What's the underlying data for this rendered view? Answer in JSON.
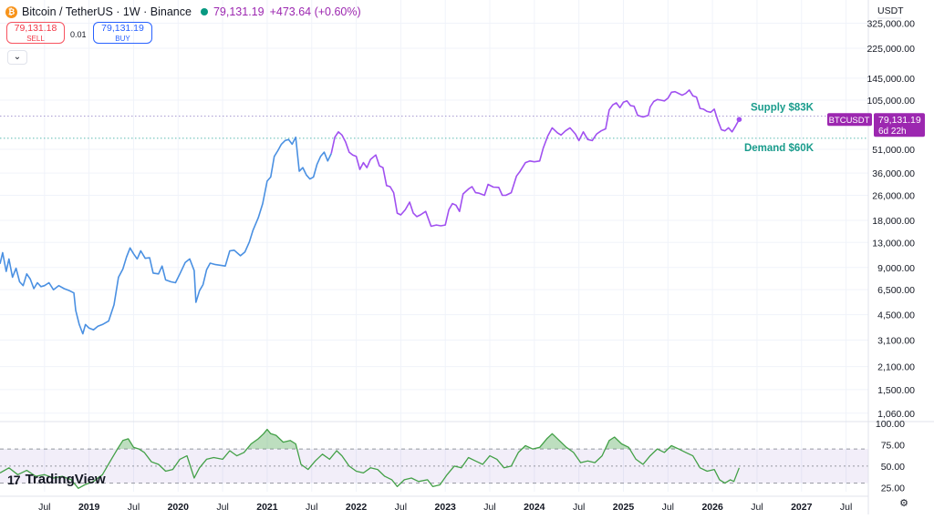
{
  "header": {
    "symbol": "Bitcoin / TetherUS · 1W · Binance",
    "coin_icon_glyph": "₿",
    "last_price": "79,131.19",
    "change": "+473.64 (+0.60%)"
  },
  "trade": {
    "sell_price": "79,131.18",
    "sell_label": "SELL",
    "spread": "0.01",
    "buy_price": "79,131.19",
    "buy_label": "BUY"
  },
  "collapse_glyph": "⌄",
  "logo": {
    "mark": "17",
    "text": "TradingView"
  },
  "gear_glyph": "⚙",
  "colors": {
    "line_blue": "#4a90e2",
    "line_purple": "#a050f0",
    "rsi": "#43a047",
    "label_green": "#1a9c8c",
    "badge": "#9c27b0"
  },
  "chart_data": {
    "type": "line",
    "price_scale": {
      "currency": "USDT",
      "log": true,
      "ticks": [
        "325,000.00",
        "225,000.00",
        "145,000.00",
        "105,000.00",
        "51,000.00",
        "36,000.00",
        "26,000.00",
        "18,000.00",
        "13,000.00",
        "9,000.00",
        "6,500.00",
        "4,500.00",
        "3,100.00",
        "2,100.00",
        "1,500.00",
        "1,060.00"
      ],
      "range": [
        950,
        400000
      ]
    },
    "x_ticks": [
      {
        "label": "Jul",
        "t": 2018.5,
        "bold": false
      },
      {
        "label": "2019",
        "t": 2019.0,
        "bold": true
      },
      {
        "label": "Jul",
        "t": 2019.5,
        "bold": false
      },
      {
        "label": "2020",
        "t": 2020.0,
        "bold": true
      },
      {
        "label": "Jul",
        "t": 2020.5,
        "bold": false
      },
      {
        "label": "2021",
        "t": 2021.0,
        "bold": true
      },
      {
        "label": "Jul",
        "t": 2021.5,
        "bold": false
      },
      {
        "label": "2022",
        "t": 2022.0,
        "bold": true
      },
      {
        "label": "Jul",
        "t": 2022.5,
        "bold": false
      },
      {
        "label": "2023",
        "t": 2023.0,
        "bold": true
      },
      {
        "label": "Jul",
        "t": 2023.5,
        "bold": false
      },
      {
        "label": "2024",
        "t": 2024.0,
        "bold": true
      },
      {
        "label": "Jul",
        "t": 2024.5,
        "bold": false
      },
      {
        "label": "2025",
        "t": 2025.0,
        "bold": true
      },
      {
        "label": "Jul",
        "t": 2025.5,
        "bold": false
      },
      {
        "label": "2026",
        "t": 2026.0,
        "bold": true
      },
      {
        "label": "Jul",
        "t": 2026.5,
        "bold": false
      },
      {
        "label": "2027",
        "t": 2027.0,
        "bold": true
      },
      {
        "label": "Jul",
        "t": 2027.5,
        "bold": false
      }
    ],
    "price_series": [
      [
        2018.0,
        9500
      ],
      [
        2018.03,
        11200
      ],
      [
        2018.07,
        8500
      ],
      [
        2018.1,
        10200
      ],
      [
        2018.14,
        7800
      ],
      [
        2018.18,
        8900
      ],
      [
        2018.22,
        7300
      ],
      [
        2018.26,
        6900
      ],
      [
        2018.3,
        8200
      ],
      [
        2018.34,
        7600
      ],
      [
        2018.38,
        6600
      ],
      [
        2018.42,
        7200
      ],
      [
        2018.46,
        6800
      ],
      [
        2018.5,
        6900
      ],
      [
        2018.55,
        7200
      ],
      [
        2018.6,
        6500
      ],
      [
        2018.66,
        6900
      ],
      [
        2018.72,
        6600
      ],
      [
        2018.78,
        6400
      ],
      [
        2018.83,
        6200
      ],
      [
        2018.85,
        4800
      ],
      [
        2018.89,
        3900
      ],
      [
        2018.93,
        3400
      ],
      [
        2018.96,
        3900
      ],
      [
        2019.0,
        3700
      ],
      [
        2019.05,
        3600
      ],
      [
        2019.1,
        3800
      ],
      [
        2019.15,
        3900
      ],
      [
        2019.22,
        4100
      ],
      [
        2019.28,
        5200
      ],
      [
        2019.33,
        7800
      ],
      [
        2019.38,
        8800
      ],
      [
        2019.42,
        10500
      ],
      [
        2019.46,
        12000
      ],
      [
        2019.5,
        11000
      ],
      [
        2019.54,
        10200
      ],
      [
        2019.58,
        11500
      ],
      [
        2019.63,
        10300
      ],
      [
        2019.68,
        10400
      ],
      [
        2019.72,
        8300
      ],
      [
        2019.78,
        8200
      ],
      [
        2019.82,
        9200
      ],
      [
        2019.86,
        7500
      ],
      [
        2019.92,
        7300
      ],
      [
        2019.97,
        7200
      ],
      [
        2020.02,
        8200
      ],
      [
        2020.08,
        9700
      ],
      [
        2020.13,
        10200
      ],
      [
        2020.18,
        8600
      ],
      [
        2020.2,
        5400
      ],
      [
        2020.24,
        6400
      ],
      [
        2020.28,
        7000
      ],
      [
        2020.32,
        8700
      ],
      [
        2020.36,
        9600
      ],
      [
        2020.42,
        9400
      ],
      [
        2020.48,
        9300
      ],
      [
        2020.53,
        9200
      ],
      [
        2020.58,
        11500
      ],
      [
        2020.63,
        11600
      ],
      [
        2020.7,
        10700
      ],
      [
        2020.75,
        11300
      ],
      [
        2020.8,
        13100
      ],
      [
        2020.84,
        15500
      ],
      [
        2020.9,
        18700
      ],
      [
        2020.95,
        23000
      ],
      [
        2021.0,
        32000
      ],
      [
        2021.04,
        34000
      ],
      [
        2021.08,
        46000
      ],
      [
        2021.12,
        50000
      ],
      [
        2021.16,
        55000
      ],
      [
        2021.2,
        58000
      ],
      [
        2021.24,
        59000
      ],
      [
        2021.28,
        55000
      ],
      [
        2021.32,
        61000
      ],
      [
        2021.36,
        37000
      ],
      [
        2021.4,
        39000
      ],
      [
        2021.44,
        35000
      ],
      [
        2021.48,
        33000
      ],
      [
        2021.52,
        34000
      ],
      [
        2021.56,
        41000
      ],
      [
        2021.6,
        46000
      ],
      [
        2021.64,
        49000
      ],
      [
        2021.68,
        43000
      ],
      [
        2021.72,
        48000
      ],
      [
        2021.76,
        61000
      ],
      [
        2021.8,
        66000
      ],
      [
        2021.84,
        63000
      ],
      [
        2021.88,
        57000
      ],
      [
        2021.92,
        49000
      ],
      [
        2021.96,
        47000
      ],
      [
        2022.0,
        46000
      ],
      [
        2022.04,
        38000
      ],
      [
        2022.08,
        42000
      ],
      [
        2022.12,
        39000
      ],
      [
        2022.16,
        44000
      ],
      [
        2022.22,
        47000
      ],
      [
        2022.26,
        40000
      ],
      [
        2022.3,
        39000
      ],
      [
        2022.34,
        30000
      ],
      [
        2022.38,
        29500
      ],
      [
        2022.42,
        27000
      ],
      [
        2022.46,
        20000
      ],
      [
        2022.5,
        19500
      ],
      [
        2022.55,
        21000
      ],
      [
        2022.6,
        23500
      ],
      [
        2022.64,
        20000
      ],
      [
        2022.68,
        19000
      ],
      [
        2022.72,
        19500
      ],
      [
        2022.78,
        20500
      ],
      [
        2022.84,
        16500
      ],
      [
        2022.9,
        16800
      ],
      [
        2022.95,
        16600
      ],
      [
        2023.0,
        16800
      ],
      [
        2023.04,
        21000
      ],
      [
        2023.08,
        23000
      ],
      [
        2023.12,
        22500
      ],
      [
        2023.16,
        20500
      ],
      [
        2023.2,
        26500
      ],
      [
        2023.26,
        28500
      ],
      [
        2023.3,
        29500
      ],
      [
        2023.34,
        27000
      ],
      [
        2023.38,
        26800
      ],
      [
        2023.44,
        26000
      ],
      [
        2023.48,
        30500
      ],
      [
        2023.54,
        29300
      ],
      [
        2023.6,
        29200
      ],
      [
        2023.64,
        26000
      ],
      [
        2023.68,
        26000
      ],
      [
        2023.74,
        27000
      ],
      [
        2023.8,
        34500
      ],
      [
        2023.84,
        37000
      ],
      [
        2023.9,
        42000
      ],
      [
        2023.95,
        43000
      ],
      [
        2024.0,
        42500
      ],
      [
        2024.06,
        43000
      ],
      [
        2024.1,
        52000
      ],
      [
        2024.15,
        62000
      ],
      [
        2024.2,
        70000
      ],
      [
        2024.26,
        65000
      ],
      [
        2024.3,
        63000
      ],
      [
        2024.35,
        67000
      ],
      [
        2024.4,
        70000
      ],
      [
        2024.46,
        64000
      ],
      [
        2024.5,
        58000
      ],
      [
        2024.55,
        66000
      ],
      [
        2024.6,
        59000
      ],
      [
        2024.65,
        58000
      ],
      [
        2024.7,
        64000
      ],
      [
        2024.75,
        67000
      ],
      [
        2024.8,
        69000
      ],
      [
        2024.84,
        91000
      ],
      [
        2024.88,
        98000
      ],
      [
        2024.92,
        101000
      ],
      [
        2024.96,
        94000
      ],
      [
        2025.0,
        102000
      ],
      [
        2025.04,
        104000
      ],
      [
        2025.08,
        97000
      ],
      [
        2025.12,
        96000
      ],
      [
        2025.16,
        84000
      ],
      [
        2025.22,
        82000
      ],
      [
        2025.28,
        84000
      ],
      [
        2025.3,
        95000
      ],
      [
        2025.34,
        103000
      ],
      [
        2025.38,
        106000
      ],
      [
        2025.42,
        105000
      ],
      [
        2025.46,
        104000
      ],
      [
        2025.5,
        108000
      ],
      [
        2025.54,
        118000
      ],
      [
        2025.58,
        119000
      ],
      [
        2025.62,
        116000
      ],
      [
        2025.66,
        113000
      ],
      [
        2025.7,
        116000
      ],
      [
        2025.74,
        122000
      ],
      [
        2025.78,
        112000
      ],
      [
        2025.82,
        110000
      ],
      [
        2025.86,
        93000
      ],
      [
        2025.9,
        92000
      ],
      [
        2025.94,
        89000
      ],
      [
        2025.98,
        88000
      ],
      [
        2026.02,
        92000
      ],
      [
        2026.06,
        78000
      ],
      [
        2026.1,
        68000
      ],
      [
        2026.14,
        67000
      ],
      [
        2026.18,
        70000
      ],
      [
        2026.22,
        66000
      ],
      [
        2026.26,
        72000
      ],
      [
        2026.3,
        79131
      ]
    ],
    "price_color_split": 2021.75,
    "last_price_label": {
      "symbol": "BTCUSDT",
      "price": "79,131.19",
      "countdown": "6d 22h",
      "value": 79131
    },
    "levels": [
      {
        "name": "Supply $83K",
        "value": 83000
      },
      {
        "name": "Demand $60K",
        "value": 60000
      }
    ],
    "rsi": {
      "ticks": [
        "100.00",
        "75.00",
        "50.00",
        "25.00"
      ],
      "range": [
        20,
        100
      ],
      "band": [
        30,
        70
      ],
      "mid": 50,
      "series": [
        [
          2018.0,
          42
        ],
        [
          2018.1,
          48
        ],
        [
          2018.2,
          40
        ],
        [
          2018.3,
          45
        ],
        [
          2018.4,
          38
        ],
        [
          2018.5,
          40
        ],
        [
          2018.6,
          36
        ],
        [
          2018.7,
          38
        ],
        [
          2018.8,
          34
        ],
        [
          2018.88,
          24
        ],
        [
          2018.95,
          28
        ],
        [
          2019.05,
          32
        ],
        [
          2019.15,
          40
        ],
        [
          2019.25,
          58
        ],
        [
          2019.33,
          72
        ],
        [
          2019.38,
          80
        ],
        [
          2019.44,
          82
        ],
        [
          2019.5,
          72
        ],
        [
          2019.56,
          70
        ],
        [
          2019.62,
          66
        ],
        [
          2019.7,
          55
        ],
        [
          2019.78,
          52
        ],
        [
          2019.86,
          44
        ],
        [
          2019.94,
          46
        ],
        [
          2020.02,
          58
        ],
        [
          2020.1,
          62
        ],
        [
          2020.18,
          36
        ],
        [
          2020.24,
          48
        ],
        [
          2020.32,
          58
        ],
        [
          2020.4,
          60
        ],
        [
          2020.5,
          58
        ],
        [
          2020.58,
          68
        ],
        [
          2020.66,
          62
        ],
        [
          2020.74,
          66
        ],
        [
          2020.82,
          76
        ],
        [
          2020.9,
          82
        ],
        [
          2020.96,
          88
        ],
        [
          2021.0,
          93
        ],
        [
          2021.04,
          88
        ],
        [
          2021.1,
          86
        ],
        [
          2021.18,
          78
        ],
        [
          2021.26,
          80
        ],
        [
          2021.32,
          76
        ],
        [
          2021.38,
          52
        ],
        [
          2021.46,
          46
        ],
        [
          2021.54,
          56
        ],
        [
          2021.62,
          64
        ],
        [
          2021.7,
          58
        ],
        [
          2021.78,
          68
        ],
        [
          2021.84,
          62
        ],
        [
          2021.92,
          50
        ],
        [
          2022.0,
          44
        ],
        [
          2022.08,
          42
        ],
        [
          2022.16,
          48
        ],
        [
          2022.24,
          46
        ],
        [
          2022.32,
          38
        ],
        [
          2022.4,
          34
        ],
        [
          2022.46,
          26
        ],
        [
          2022.54,
          34
        ],
        [
          2022.62,
          36
        ],
        [
          2022.7,
          32
        ],
        [
          2022.8,
          34
        ],
        [
          2022.86,
          26
        ],
        [
          2022.94,
          28
        ],
        [
          2023.02,
          40
        ],
        [
          2023.1,
          50
        ],
        [
          2023.18,
          48
        ],
        [
          2023.26,
          60
        ],
        [
          2023.34,
          56
        ],
        [
          2023.42,
          52
        ],
        [
          2023.5,
          62
        ],
        [
          2023.58,
          58
        ],
        [
          2023.66,
          48
        ],
        [
          2023.74,
          50
        ],
        [
          2023.82,
          66
        ],
        [
          2023.9,
          74
        ],
        [
          2023.98,
          70
        ],
        [
          2024.06,
          72
        ],
        [
          2024.14,
          82
        ],
        [
          2024.2,
          88
        ],
        [
          2024.28,
          80
        ],
        [
          2024.36,
          72
        ],
        [
          2024.44,
          66
        ],
        [
          2024.52,
          54
        ],
        [
          2024.6,
          56
        ],
        [
          2024.68,
          54
        ],
        [
          2024.76,
          62
        ],
        [
          2024.84,
          80
        ],
        [
          2024.9,
          84
        ],
        [
          2024.98,
          76
        ],
        [
          2025.06,
          72
        ],
        [
          2025.14,
          58
        ],
        [
          2025.22,
          52
        ],
        [
          2025.3,
          62
        ],
        [
          2025.38,
          70
        ],
        [
          2025.46,
          66
        ],
        [
          2025.54,
          74
        ],
        [
          2025.62,
          70
        ],
        [
          2025.7,
          66
        ],
        [
          2025.78,
          62
        ],
        [
          2025.86,
          48
        ],
        [
          2025.94,
          44
        ],
        [
          2026.02,
          46
        ],
        [
          2026.08,
          34
        ],
        [
          2026.14,
          30
        ],
        [
          2026.2,
          34
        ],
        [
          2026.24,
          32
        ],
        [
          2026.3,
          48
        ]
      ]
    },
    "x_range": [
      2018.0,
      2027.75
    ],
    "grid": true
  }
}
